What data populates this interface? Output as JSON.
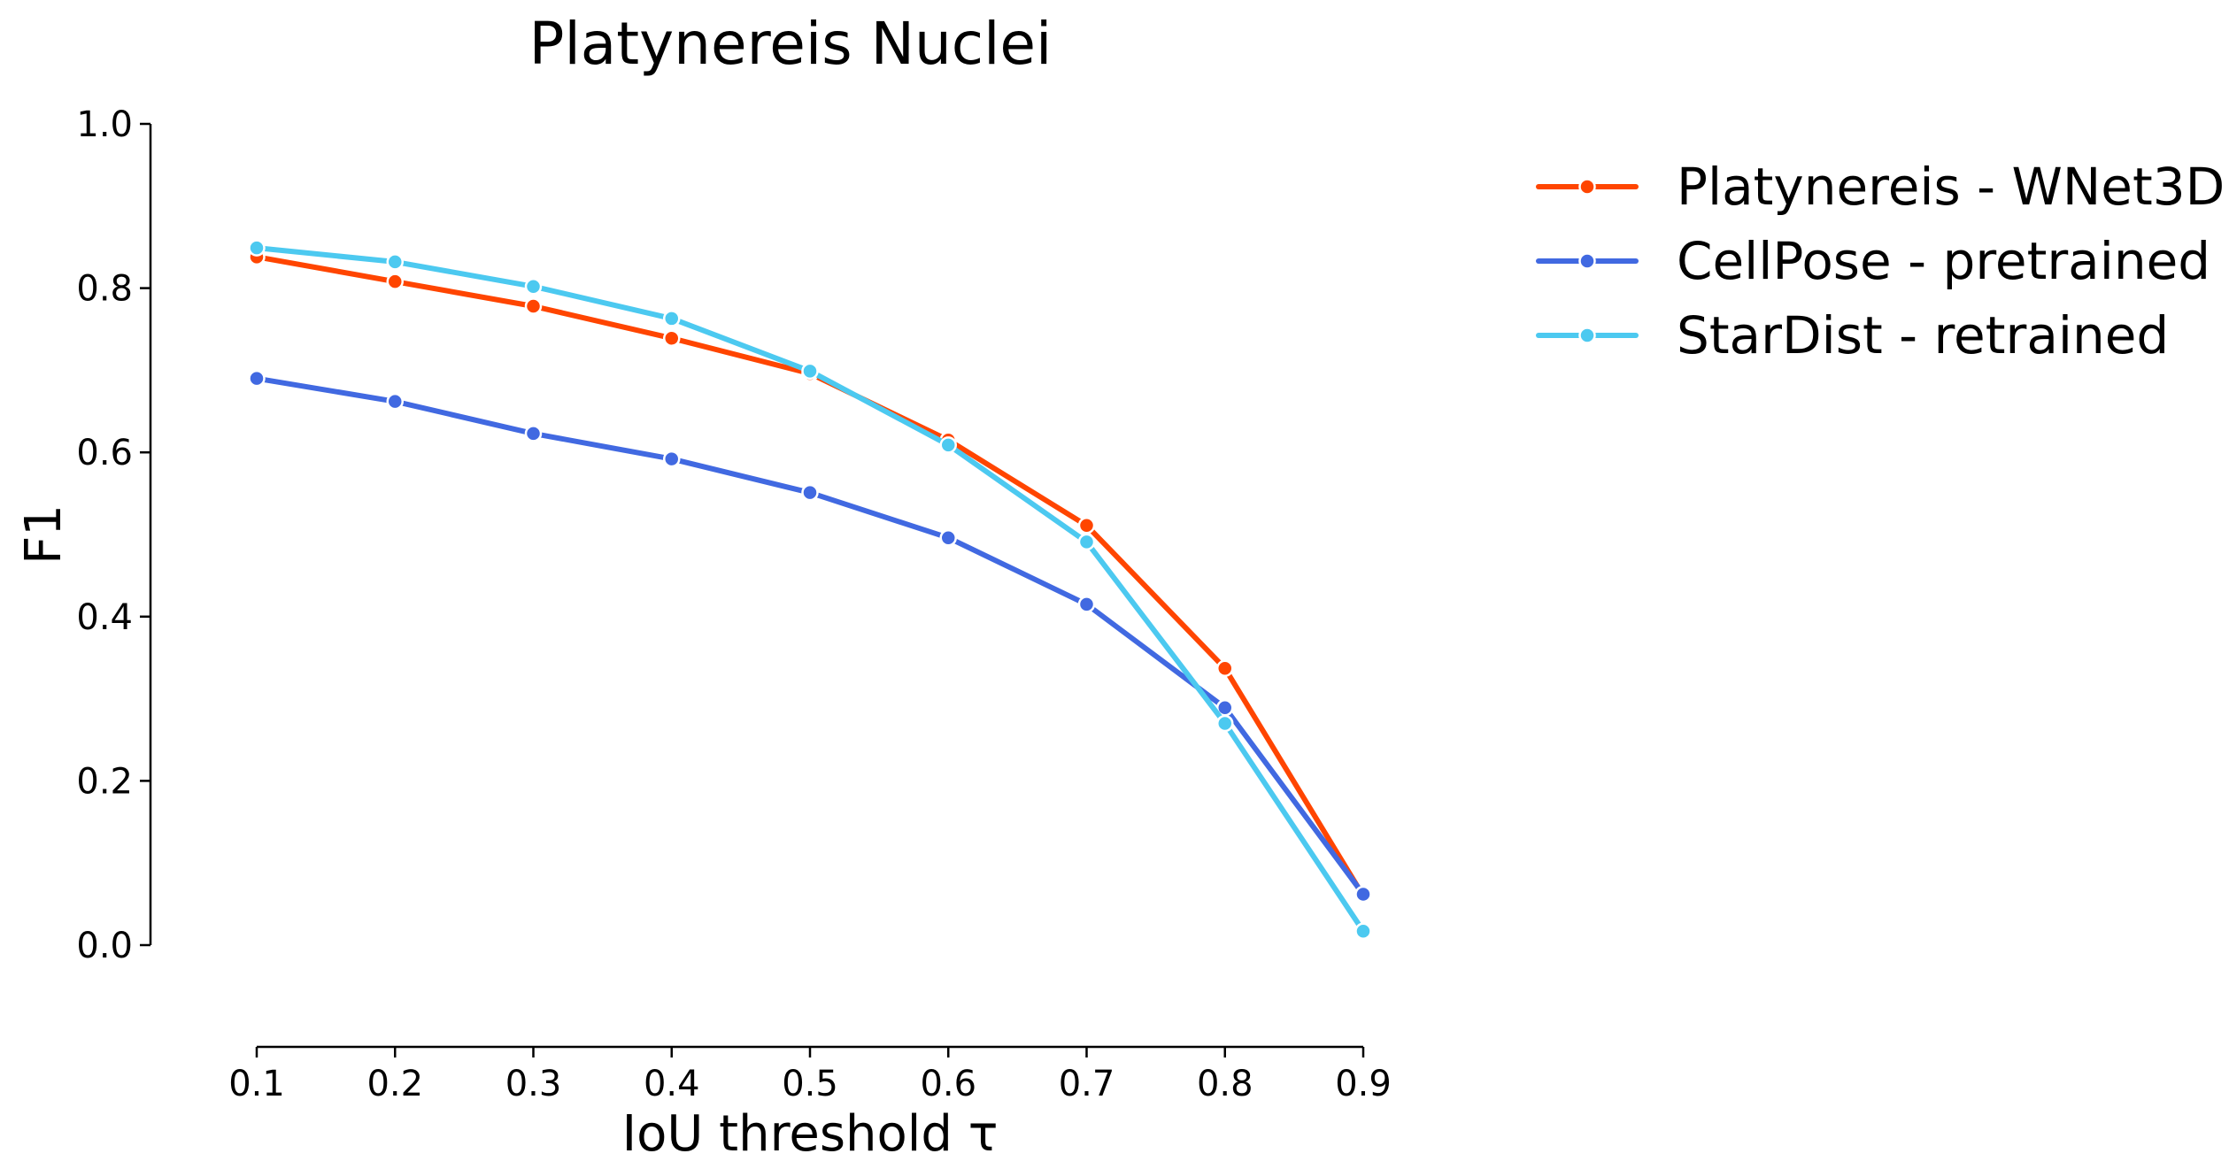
{
  "chart_data": {
    "type": "line",
    "title": "Platynereis Nuclei",
    "xlabel": "IoU threshold τ",
    "ylabel": "F1",
    "x": [
      0.1,
      0.2,
      0.3,
      0.4,
      0.5,
      0.6,
      0.7,
      0.8,
      0.9
    ],
    "x_tick_labels": [
      "0.1",
      "0.2",
      "0.3",
      "0.4",
      "0.5",
      "0.6",
      "0.7",
      "0.8",
      "0.9"
    ],
    "y_ticks": [
      0.0,
      0.2,
      0.4,
      0.6,
      0.8,
      1.0
    ],
    "y_tick_labels": [
      "0.0",
      "0.2",
      "0.4",
      "0.6",
      "0.8",
      "1.0"
    ],
    "xlim": [
      0.1,
      0.9
    ],
    "ylim": [
      -0.12,
      1.0
    ],
    "grid": false,
    "legend_position": "outside-right",
    "series": [
      {
        "name": "Platynereis - WNet3D",
        "color": "#FF4500",
        "values": [
          0.838,
          0.808,
          0.778,
          0.739,
          0.696,
          0.615,
          0.511,
          0.337,
          0.06
        ]
      },
      {
        "name": "CellPose - pretrained",
        "color": "#4169E1",
        "values": [
          0.69,
          0.662,
          0.623,
          0.592,
          0.551,
          0.496,
          0.415,
          0.289,
          0.062
        ]
      },
      {
        "name": "StarDist - retrained",
        "color": "#4CC9F0",
        "values": [
          0.849,
          0.832,
          0.802,
          0.763,
          0.699,
          0.609,
          0.491,
          0.27,
          0.017
        ]
      }
    ]
  }
}
